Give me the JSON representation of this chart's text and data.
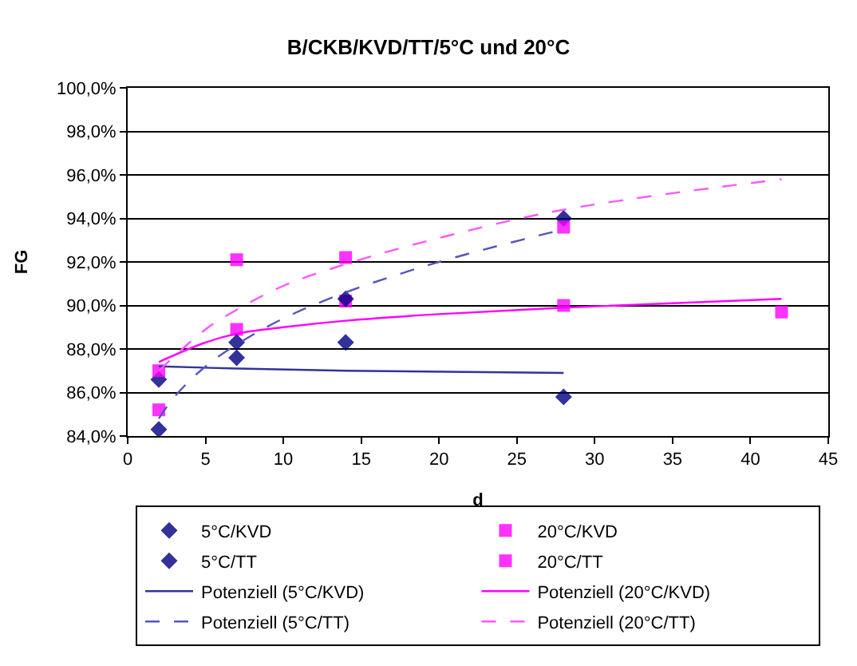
{
  "chart_data": {
    "type": "scatter",
    "title": "B/CKB/KVD/TT/5°C und 20°C",
    "xlabel": "d",
    "ylabel": "FG",
    "xlim": [
      0,
      45
    ],
    "xticks": [
      0,
      5,
      10,
      15,
      20,
      25,
      30,
      35,
      40,
      45
    ],
    "ylim": [
      84,
      100
    ],
    "yticks": [
      {
        "value": 84,
        "label": "84,0%"
      },
      {
        "value": 86,
        "label": "86,0%"
      },
      {
        "value": 88,
        "label": "88,0%"
      },
      {
        "value": 90,
        "label": "90,0%"
      },
      {
        "value": 92,
        "label": "92,0%"
      },
      {
        "value": 94,
        "label": "94,0%"
      },
      {
        "value": 96,
        "label": "96,0%"
      },
      {
        "value": 98,
        "label": "98,0%"
      },
      {
        "value": 100,
        "label": "100,0%"
      }
    ],
    "grid": "y",
    "legend": "bottom",
    "series": [
      {
        "name": "5°C/KVD",
        "marker": "diamond",
        "color": "#000080",
        "x": [
          2,
          7,
          14,
          28
        ],
        "values": [
          86.6,
          87.6,
          88.3,
          85.8
        ]
      },
      {
        "name": "20°C/KVD",
        "marker": "square",
        "color": "#ff00ff",
        "x": [
          2,
          7,
          14,
          28,
          42
        ],
        "values": [
          87.0,
          88.9,
          90.2,
          90.0,
          89.7
        ]
      },
      {
        "name": "5°C/TT",
        "marker": "diamond",
        "color": "#000080",
        "x": [
          2,
          7,
          14,
          28
        ],
        "values": [
          84.3,
          88.3,
          90.3,
          94.0
        ]
      },
      {
        "name": "20°C/TT",
        "marker": "square",
        "color": "#ff00ff",
        "x": [
          2,
          7,
          14,
          28
        ],
        "values": [
          85.2,
          92.1,
          92.2,
          93.6
        ]
      },
      {
        "name": "Potenziell (5°C/KVD)",
        "type": "line",
        "line_style": "solid",
        "color": "#333399",
        "x": [
          2,
          7,
          14,
          28
        ],
        "values": [
          87.2,
          87.1,
          87.0,
          86.9
        ]
      },
      {
        "name": "Potenziell (20°C/KVD)",
        "type": "line",
        "line_style": "solid",
        "color": "#ff00ff",
        "x": [
          2,
          5,
          7,
          10,
          14,
          20,
          28,
          42
        ],
        "values": [
          87.4,
          88.3,
          88.7,
          89.0,
          89.3,
          89.6,
          89.9,
          90.3
        ]
      },
      {
        "name": "Potenziell (5°C/TT)",
        "type": "line",
        "line_style": "dashed",
        "color": "#5555bb",
        "x": [
          2,
          3,
          5,
          7,
          10,
          14,
          20,
          28
        ],
        "values": [
          84.8,
          85.8,
          87.2,
          88.2,
          89.4,
          90.6,
          92.0,
          93.5
        ]
      },
      {
        "name": "Potenziell (20°C/TT)",
        "type": "line",
        "line_style": "dashed",
        "color": "#ff55ff",
        "x": [
          2,
          5,
          7,
          10,
          14,
          20,
          28,
          42
        ],
        "values": [
          87.0,
          88.9,
          89.8,
          90.9,
          91.9,
          93.1,
          94.4,
          95.8
        ]
      }
    ]
  }
}
